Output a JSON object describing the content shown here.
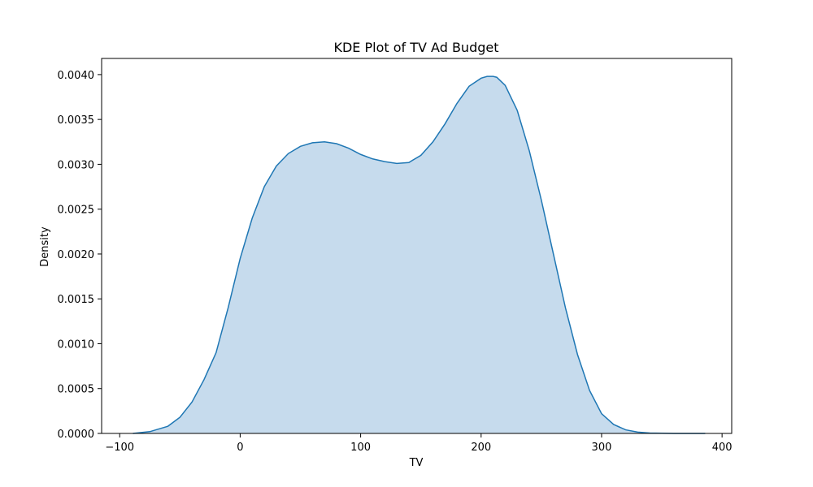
{
  "chart_data": {
    "type": "area",
    "title": "KDE Plot of TV Ad Budget",
    "xlabel": "TV",
    "ylabel": "Density",
    "xlim": [
      -115,
      408
    ],
    "ylim": [
      0,
      0.00418
    ],
    "x_ticks": [
      -100,
      0,
      100,
      200,
      300,
      400
    ],
    "x_tick_labels": [
      "−100",
      "0",
      "100",
      "200",
      "300",
      "400"
    ],
    "y_ticks": [
      0,
      0.0005,
      0.001,
      0.0015,
      0.002,
      0.0025,
      0.003,
      0.0035,
      0.004
    ],
    "y_tick_labels": [
      "0.0000",
      "0.0005",
      "0.0010",
      "0.0015",
      "0.0020",
      "0.0025",
      "0.0030",
      "0.0035",
      "0.0040"
    ],
    "grid": false,
    "legend": false,
    "series": [
      {
        "name": "TV",
        "line_color": "#1f77b4",
        "fill_color": "#c6dbed",
        "x": [
          -89,
          -75,
          -60,
          -50,
          -40,
          -30,
          -20,
          -10,
          0,
          10,
          20,
          30,
          40,
          50,
          60,
          70,
          80,
          90,
          100,
          110,
          120,
          130,
          140,
          150,
          160,
          170,
          180,
          190,
          200,
          205,
          210,
          213,
          220,
          230,
          240,
          250,
          260,
          270,
          280,
          290,
          300,
          310,
          320,
          330,
          340,
          350,
          360,
          370,
          386
        ],
        "y": [
          0.0,
          2e-05,
          8e-05,
          0.00018,
          0.00035,
          0.0006,
          0.0009,
          0.0014,
          0.00195,
          0.0024,
          0.00275,
          0.00298,
          0.00312,
          0.0032,
          0.00324,
          0.00325,
          0.00323,
          0.00318,
          0.00311,
          0.00306,
          0.00303,
          0.00301,
          0.00302,
          0.0031,
          0.00325,
          0.00345,
          0.00368,
          0.00387,
          0.00396,
          0.00398,
          0.00398,
          0.00397,
          0.00388,
          0.0036,
          0.00315,
          0.0026,
          0.002,
          0.0014,
          0.00088,
          0.00048,
          0.00022,
          0.0001,
          4e-05,
          1.5e-05,
          5e-06,
          2e-06,
          5e-07,
          1e-07,
          0.0
        ]
      }
    ]
  }
}
